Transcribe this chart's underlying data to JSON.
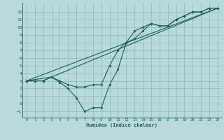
{
  "title": "",
  "xlabel": "Humidex (Indice chaleur)",
  "bg_color": "#b8dada",
  "grid_color": "#8cbaba",
  "line_color": "#1a5c5c",
  "xlim": [
    -0.5,
    23.5
  ],
  "ylim": [
    -1.8,
    13.2
  ],
  "xticks": [
    0,
    1,
    2,
    3,
    4,
    5,
    6,
    7,
    8,
    9,
    10,
    11,
    12,
    13,
    14,
    15,
    16,
    17,
    18,
    19,
    20,
    21,
    22,
    23
  ],
  "yticks": [
    -1,
    0,
    1,
    2,
    3,
    4,
    5,
    6,
    7,
    8,
    9,
    10,
    11,
    12
  ],
  "series1_x": [
    0,
    1,
    2,
    3,
    4,
    5,
    6,
    7,
    8,
    9,
    10,
    11,
    12,
    13,
    14,
    15,
    16,
    17,
    18,
    19,
    20,
    21,
    22,
    23
  ],
  "series1_y": [
    3,
    3,
    3,
    3.5,
    3,
    2.5,
    2.2,
    2.2,
    2.5,
    2.5,
    5,
    7,
    8,
    8.5,
    9.5,
    10.5,
    10.2,
    10.2,
    11,
    11.5,
    12,
    12,
    12.5,
    12.5
  ],
  "series2_x": [
    0,
    1,
    2,
    3,
    4,
    5,
    6,
    7,
    8,
    9,
    10,
    11,
    12,
    13,
    14,
    15,
    16,
    17,
    18,
    19,
    20,
    21,
    22,
    23
  ],
  "series2_y": [
    3,
    3,
    3,
    3.5,
    2.8,
    2.0,
    0.8,
    -1.0,
    -0.5,
    -0.5,
    2.5,
    4.5,
    8.0,
    9.5,
    10,
    10.5,
    10.2,
    10.2,
    11,
    11.5,
    12,
    12,
    12.5,
    12.5
  ],
  "series3_x": [
    0,
    3,
    23
  ],
  "series3_y": [
    3,
    3.5,
    12.5
  ],
  "series4_x": [
    0,
    23
  ],
  "series4_y": [
    3,
    12.5
  ]
}
